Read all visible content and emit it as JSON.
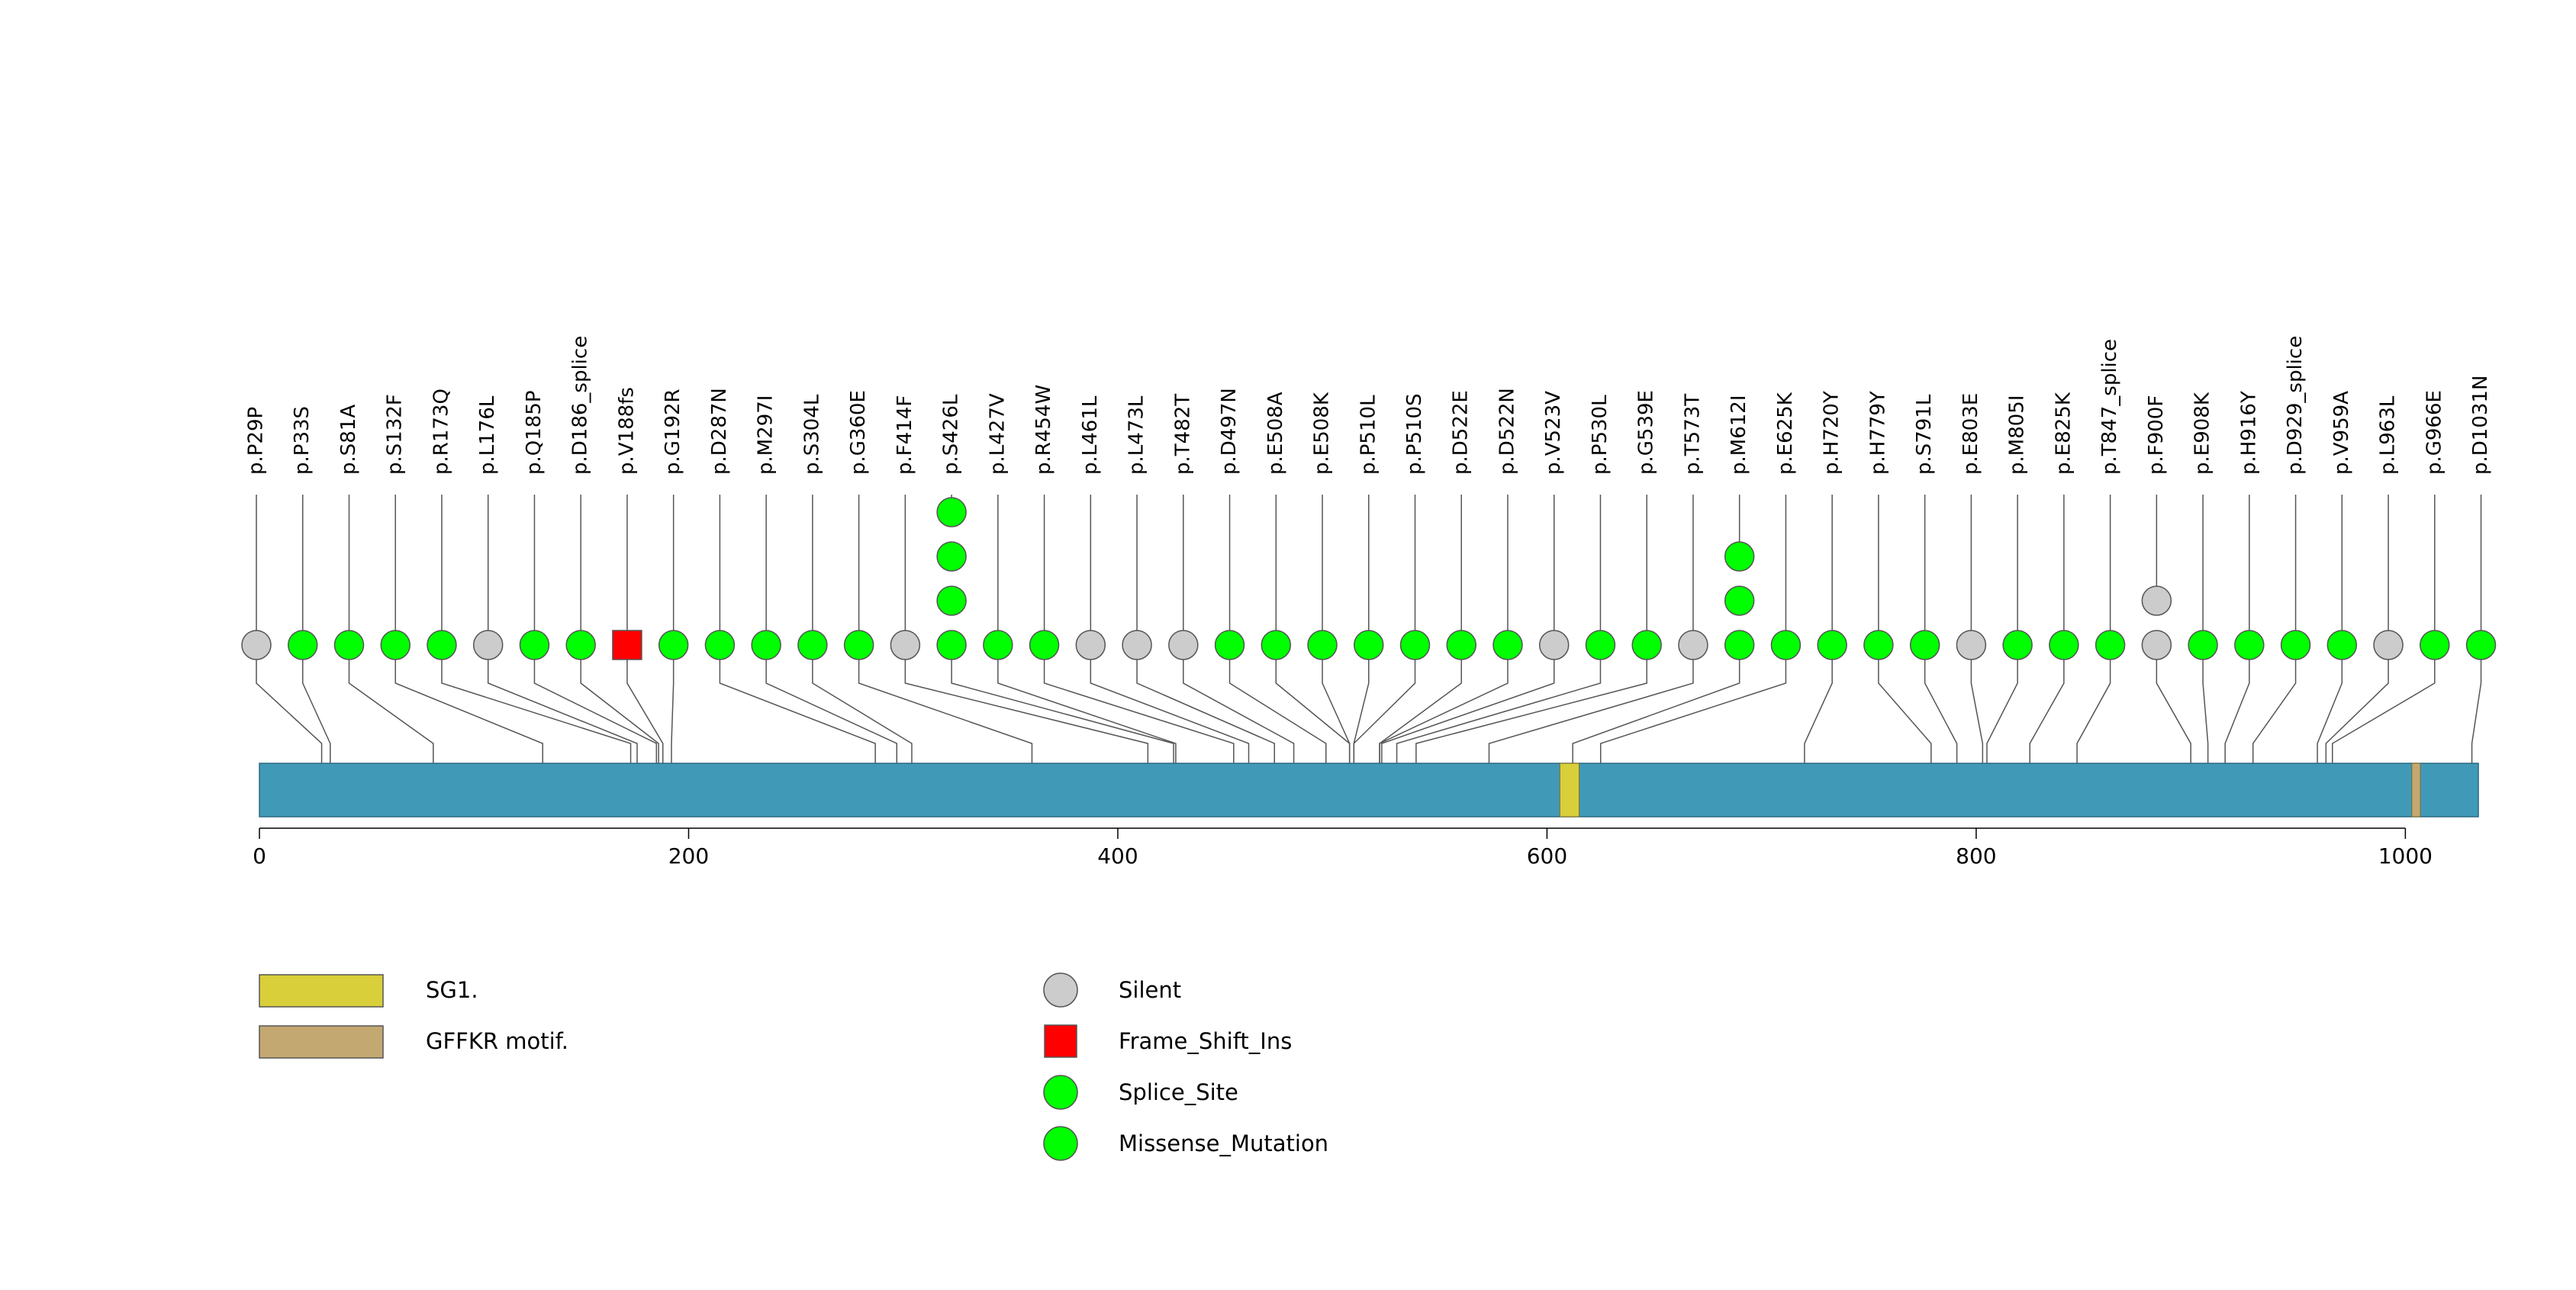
{
  "chart_data": {
    "type": "lollipop",
    "protein_length": 1034,
    "axis": {
      "xlim": [
        0,
        1034
      ],
      "ticks": [
        0,
        200,
        400,
        600,
        800,
        1000
      ]
    },
    "colors": {
      "backbone": "#4199b8",
      "Silent": "#cccccc",
      "Frame_Shift_Ins": "#ff0000",
      "Splice_Site": "#00ff00",
      "Missense_Mutation": "#00ff00",
      "SG1": "#d9cf3a",
      "GFFKR": "#c4a871"
    },
    "domains": [
      {
        "name": "SG1.",
        "start": 606,
        "end": 615,
        "color": "#d9cf3a"
      },
      {
        "name": "GFFKR motif.",
        "start": 1003,
        "end": 1007,
        "color": "#c4a871"
      }
    ],
    "mutations": [
      {
        "label": "p.P29P",
        "pos": 29,
        "stack": [
          "Silent"
        ]
      },
      {
        "label": "p.P33S",
        "pos": 33,
        "stack": [
          "Missense_Mutation"
        ]
      },
      {
        "label": "p.S81A",
        "pos": 81,
        "stack": [
          "Missense_Mutation"
        ]
      },
      {
        "label": "p.S132F",
        "pos": 132,
        "stack": [
          "Missense_Mutation"
        ]
      },
      {
        "label": "p.R173Q",
        "pos": 173,
        "stack": [
          "Missense_Mutation"
        ]
      },
      {
        "label": "p.L176L",
        "pos": 176,
        "stack": [
          "Silent"
        ]
      },
      {
        "label": "p.Q185P",
        "pos": 185,
        "stack": [
          "Missense_Mutation"
        ]
      },
      {
        "label": "p.D186_splice",
        "pos": 186,
        "stack": [
          "Splice_Site"
        ]
      },
      {
        "label": "p.V188fs",
        "pos": 188,
        "stack": [
          "Frame_Shift_Ins"
        ]
      },
      {
        "label": "p.G192R",
        "pos": 192,
        "stack": [
          "Missense_Mutation"
        ]
      },
      {
        "label": "p.D287N",
        "pos": 287,
        "stack": [
          "Missense_Mutation"
        ]
      },
      {
        "label": "p.M297I",
        "pos": 297,
        "stack": [
          "Missense_Mutation"
        ]
      },
      {
        "label": "p.S304L",
        "pos": 304,
        "stack": [
          "Missense_Mutation"
        ]
      },
      {
        "label": "p.G360E",
        "pos": 360,
        "stack": [
          "Missense_Mutation"
        ]
      },
      {
        "label": "p.F414F",
        "pos": 414,
        "stack": [
          "Silent"
        ]
      },
      {
        "label": "p.S426L",
        "pos": 426,
        "stack": [
          "Missense_Mutation",
          "Missense_Mutation",
          "Missense_Mutation",
          "Missense_Mutation"
        ]
      },
      {
        "label": "p.L427V",
        "pos": 427,
        "stack": [
          "Missense_Mutation"
        ]
      },
      {
        "label": "p.R454W",
        "pos": 454,
        "stack": [
          "Missense_Mutation"
        ]
      },
      {
        "label": "p.L461L",
        "pos": 461,
        "stack": [
          "Silent"
        ]
      },
      {
        "label": "p.L473L",
        "pos": 473,
        "stack": [
          "Silent"
        ]
      },
      {
        "label": "p.T482T",
        "pos": 482,
        "stack": [
          "Silent"
        ]
      },
      {
        "label": "p.D497N",
        "pos": 497,
        "stack": [
          "Missense_Mutation"
        ]
      },
      {
        "label": "p.E508A",
        "pos": 508,
        "stack": [
          "Missense_Mutation"
        ]
      },
      {
        "label": "p.E508K",
        "pos": 508,
        "stack": [
          "Missense_Mutation"
        ]
      },
      {
        "label": "p.P510L",
        "pos": 510,
        "stack": [
          "Missense_Mutation"
        ]
      },
      {
        "label": "p.P510S",
        "pos": 510,
        "stack": [
          "Missense_Mutation"
        ]
      },
      {
        "label": "p.D522E",
        "pos": 522,
        "stack": [
          "Missense_Mutation"
        ]
      },
      {
        "label": "p.D522N",
        "pos": 522,
        "stack": [
          "Missense_Mutation"
        ]
      },
      {
        "label": "p.V523V",
        "pos": 523,
        "stack": [
          "Silent"
        ]
      },
      {
        "label": "p.P530L",
        "pos": 530,
        "stack": [
          "Missense_Mutation"
        ]
      },
      {
        "label": "p.G539E",
        "pos": 539,
        "stack": [
          "Missense_Mutation"
        ]
      },
      {
        "label": "p.T573T",
        "pos": 573,
        "stack": [
          "Silent"
        ]
      },
      {
        "label": "p.M612I",
        "pos": 612,
        "stack": [
          "Missense_Mutation",
          "Missense_Mutation",
          "Missense_Mutation"
        ]
      },
      {
        "label": "p.E625K",
        "pos": 625,
        "stack": [
          "Missense_Mutation"
        ]
      },
      {
        "label": "p.H720Y",
        "pos": 720,
        "stack": [
          "Missense_Mutation"
        ]
      },
      {
        "label": "p.H779Y",
        "pos": 779,
        "stack": [
          "Missense_Mutation"
        ]
      },
      {
        "label": "p.S791L",
        "pos": 791,
        "stack": [
          "Missense_Mutation"
        ]
      },
      {
        "label": "p.E803E",
        "pos": 803,
        "stack": [
          "Silent"
        ]
      },
      {
        "label": "p.M805I",
        "pos": 805,
        "stack": [
          "Missense_Mutation"
        ]
      },
      {
        "label": "p.E825K",
        "pos": 825,
        "stack": [
          "Missense_Mutation"
        ]
      },
      {
        "label": "p.T847_splice",
        "pos": 847,
        "stack": [
          "Splice_Site"
        ]
      },
      {
        "label": "p.F900F",
        "pos": 900,
        "stack": [
          "Silent",
          "Silent"
        ]
      },
      {
        "label": "p.E908K",
        "pos": 908,
        "stack": [
          "Missense_Mutation"
        ]
      },
      {
        "label": "p.H916Y",
        "pos": 916,
        "stack": [
          "Missense_Mutation"
        ]
      },
      {
        "label": "p.D929_splice",
        "pos": 929,
        "stack": [
          "Splice_Site"
        ]
      },
      {
        "label": "p.V959A",
        "pos": 959,
        "stack": [
          "Missense_Mutation"
        ]
      },
      {
        "label": "p.L963L",
        "pos": 963,
        "stack": [
          "Silent"
        ]
      },
      {
        "label": "p.G966E",
        "pos": 966,
        "stack": [
          "Missense_Mutation"
        ]
      },
      {
        "label": "p.D1031N",
        "pos": 1031,
        "stack": [
          "Missense_Mutation"
        ]
      }
    ],
    "legend_domains": [
      {
        "label": "SG1.",
        "color": "#d9cf3a"
      },
      {
        "label": "GFFKR motif.",
        "color": "#c4a871"
      }
    ],
    "legend_types": [
      {
        "label": "Silent",
        "shape": "circle",
        "color": "#cccccc"
      },
      {
        "label": "Frame_Shift_Ins",
        "shape": "square",
        "color": "#ff0000"
      },
      {
        "label": "Splice_Site",
        "shape": "circle",
        "color": "#00ff00"
      },
      {
        "label": "Missense_Mutation",
        "shape": "circle",
        "color": "#00ff00"
      }
    ]
  }
}
